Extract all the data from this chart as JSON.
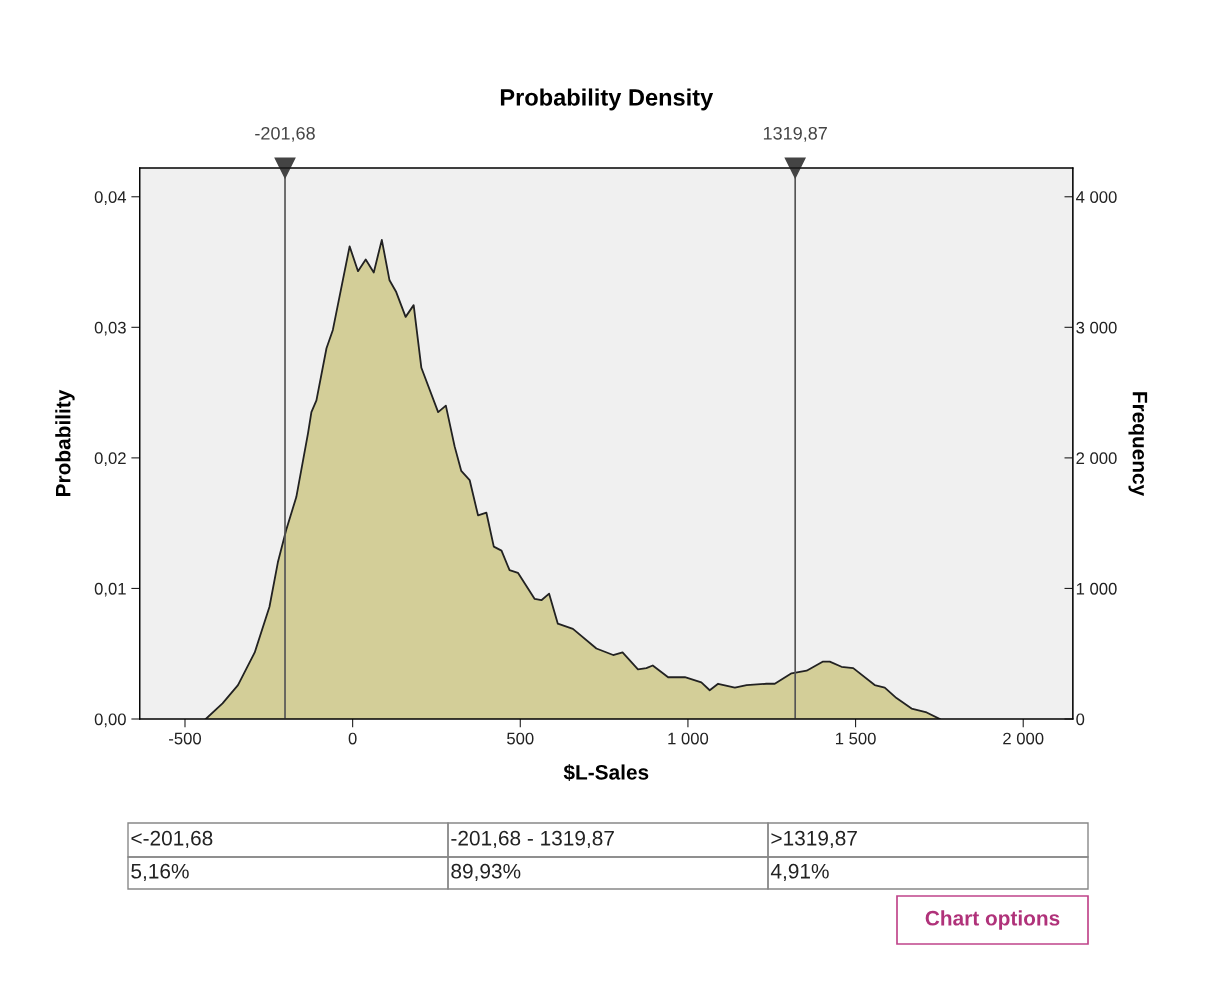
{
  "chart_data": {
    "type": "area",
    "title": "Probability Density",
    "xlabel": "$L-Sales",
    "ylabel": "Probability",
    "y2label": "Frequency",
    "x": [
      -438,
      -388,
      -342,
      -292,
      -248,
      -223,
      -198,
      -168,
      -133,
      -123,
      -108,
      -78,
      -59,
      -9,
      16,
      39,
      63,
      87,
      110,
      130,
      158,
      182,
      205,
      255,
      278,
      304,
      324,
      349,
      374,
      399,
      421,
      444,
      468,
      493,
      543,
      563,
      586,
      612,
      657,
      727,
      777,
      805,
      851,
      876,
      895,
      941,
      991,
      1040,
      1065,
      1090,
      1140,
      1175,
      1234,
      1259,
      1309,
      1354,
      1403,
      1423,
      1458,
      1493,
      1557,
      1587,
      1622,
      1667,
      1712,
      1751
    ],
    "series": [
      {
        "color": "#d3ce98",
        "values": [
          0,
          0.0012,
          0.0026,
          0.0051,
          0.0086,
          0.012,
          0.0145,
          0.017,
          0.0219,
          0.0235,
          0.0244,
          0.0284,
          0.0298,
          0.0362,
          0.0343,
          0.0352,
          0.0342,
          0.0367,
          0.0336,
          0.0327,
          0.0308,
          0.0317,
          0.0269,
          0.0235,
          0.024,
          0.0209,
          0.019,
          0.0183,
          0.0156,
          0.0158,
          0.0132,
          0.0129,
          0.0114,
          0.0112,
          0.0092,
          0.0091,
          0.0096,
          0.0073,
          0.0069,
          0.0054,
          0.0049,
          0.0051,
          0.0038,
          0.0039,
          0.0041,
          0.0032,
          0.0032,
          0.0028,
          0.0022,
          0.0027,
          0.0024,
          0.0026,
          0.0027,
          0.0027,
          0.0035,
          0.0037,
          0.0044,
          0.0044,
          0.004,
          0.0039,
          0.0026,
          0.0024,
          0.0016,
          0.0008,
          0.0005,
          0
        ]
      }
    ],
    "xlim": [
      -635,
      2148
    ],
    "xticks": [
      -500,
      0,
      500,
      {
        "value": 1000,
        "label": "1 000"
      },
      {
        "value": 1500,
        "label": "1 500"
      },
      {
        "value": 2000,
        "label": "2 000"
      }
    ],
    "ylim": [
      0,
      0.0422
    ],
    "yticks": [
      {
        "value": 0,
        "label": "0,00"
      },
      {
        "value": 0.01,
        "label": "0,01"
      },
      {
        "value": 0.02,
        "label": "0,02"
      },
      {
        "value": 0.03,
        "label": "0,03"
      },
      {
        "value": 0.04,
        "label": "0,04"
      }
    ],
    "y2lim": [
      0,
      4220
    ],
    "y2ticks": [
      0,
      {
        "value": 1000,
        "label": "1 000"
      },
      {
        "value": 2000,
        "label": "2 000"
      },
      {
        "value": 3000,
        "label": "3 000"
      },
      {
        "value": 4000,
        "label": "4 000"
      }
    ],
    "ref_lines": [
      {
        "axis": "x",
        "value": -201.68,
        "label": "-201,68",
        "color": "#555555"
      },
      {
        "axis": "x",
        "value": 1319.87,
        "label": "1319,87",
        "color": "#555555"
      }
    ],
    "annotations": [
      "<-201,68",
      "-201,68 - 1319,87",
      ">1319,87",
      "5,16%",
      "89,93%",
      "4,91%",
      "Chart options"
    ],
    "grid": false,
    "legend": false
  }
}
